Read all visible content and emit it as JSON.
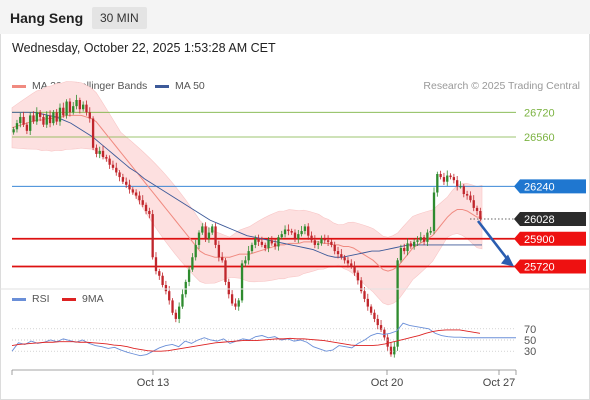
{
  "header": {
    "title": "Hang Seng",
    "interval": "30 MIN"
  },
  "datetime": "Wednesday, October 22, 2025 1:53:28 AM CET",
  "legend": {
    "ma20_label": "MA 20 + Bollinger Bands",
    "ma50_label": "MA 50",
    "copyright": "Research © 2025 Trading Central",
    "rsi_label": "RSI",
    "ma9_label": "9MA"
  },
  "colors": {
    "ma20": "#f08a80",
    "ma50": "#3d5a99",
    "bollinger_fill": "#fde0e0",
    "candle_up": "#2e8b2e",
    "candle_down": "#c0262c",
    "resistance": "#7cb342",
    "pivot": "#1f77d0",
    "support": "#dd1111",
    "rsi": "#6a8fd8",
    "rsi_ma": "#dd2222",
    "arrow": "#2a5db0"
  },
  "chart_data": [
    {
      "type": "candlestick",
      "title": "Hang Seng",
      "x_ticks": [
        "Oct 13",
        "Oct 20",
        "Oct 27"
      ],
      "ylim": [
        25600,
        26800
      ],
      "levels": [
        {
          "value": 26720,
          "label": "26720",
          "role": "resistance"
        },
        {
          "value": 26560,
          "label": "26560",
          "role": "resistance"
        },
        {
          "value": 26240,
          "label": "26240",
          "role": "pivot"
        },
        {
          "value": 26028,
          "label": "26028",
          "role": "last-price"
        },
        {
          "value": 25900,
          "label": "25900",
          "role": "support"
        },
        {
          "value": 25720,
          "label": "25720",
          "role": "support"
        }
      ],
      "close": [
        26610,
        26650,
        26690,
        26640,
        26600,
        26700,
        26660,
        26720,
        26690,
        26640,
        26700,
        26650,
        26720,
        26660,
        26750,
        26700,
        26790,
        26720,
        26760,
        26800,
        26740,
        26770,
        26720,
        26680,
        26490,
        26450,
        26470,
        26430,
        26420,
        26380,
        26360,
        26330,
        26300,
        26270,
        26250,
        26220,
        26200,
        26180,
        26150,
        26120,
        26080,
        26060,
        25780,
        25690,
        25660,
        25600,
        25560,
        25500,
        25420,
        25380,
        25460,
        25540,
        25620,
        25700,
        25780,
        25860,
        25940,
        25980,
        25900,
        25940,
        25980,
        25860,
        25780,
        25760,
        25620,
        25540,
        25480,
        25460,
        25500,
        25740,
        25760,
        25820,
        25860,
        25900,
        25880,
        25860,
        25840,
        25890,
        25870,
        25850,
        25910,
        25930,
        25960,
        25950,
        25940,
        25900,
        25930,
        25950,
        25980,
        25920,
        25890,
        25860,
        25870,
        25900,
        25890,
        25880,
        25860,
        25820,
        25800,
        25780,
        25760,
        25740,
        25720,
        25680,
        25630,
        25560,
        25510,
        25460,
        25420,
        25380,
        25340,
        25310,
        25260,
        25200,
        25150,
        25200,
        25760,
        25840,
        25820,
        25870,
        25850,
        25880,
        25890,
        25910,
        25880,
        25940,
        25950,
        26200,
        26320,
        26300,
        26270,
        26310,
        26300,
        26280,
        26240,
        26240,
        26190,
        26180,
        26150,
        26100,
        26080,
        26028
      ],
      "ma20": [
        26620,
        26630,
        26640,
        26650,
        26660,
        26670,
        26670,
        26680,
        26680,
        26690,
        26690,
        26700,
        26700,
        26700,
        26700,
        26690,
        26680,
        26660,
        26620,
        26580,
        26540,
        26500,
        26460,
        26420,
        26380,
        26340,
        26300,
        26260,
        26220,
        26180,
        26140,
        26100,
        26060,
        26020,
        25980,
        25940,
        25900,
        25860,
        25820,
        25800,
        25790,
        25780,
        25780,
        25780,
        25780,
        25790,
        25800,
        25800,
        25800,
        25810,
        25820,
        25830,
        25840,
        25850,
        25860,
        25860,
        25870,
        25870,
        25870,
        25880,
        25880,
        25880,
        25880,
        25870,
        25870,
        25860,
        25860,
        25850,
        25850,
        25840,
        25820,
        25800,
        25780,
        25760,
        25730,
        25700,
        25690,
        25700,
        25720,
        25760,
        25800,
        25840,
        25860,
        25880,
        25900,
        25920,
        25960,
        26000,
        26040,
        26070,
        26090,
        26090,
        26080,
        26060,
        26040,
        26040
      ],
      "ma50": [
        26720,
        26720,
        26720,
        26720,
        26710,
        26700,
        26690,
        26670,
        26650,
        26620,
        26590,
        26560,
        26520,
        26480,
        26440,
        26400,
        26360,
        26330,
        26290,
        26260,
        26230,
        26200,
        26170,
        26140,
        26110,
        26080,
        26050,
        26020,
        26000,
        25980,
        25960,
        25940,
        25920,
        25910,
        25900,
        25890,
        25880,
        25870,
        25860,
        25850,
        25840,
        25830,
        25810,
        25790,
        25780,
        25780,
        25790,
        25800,
        25810,
        25820,
        25820,
        25830,
        25840,
        25850,
        25860,
        25860,
        25860,
        25860,
        25860,
        25860,
        25860,
        25860,
        25860,
        25860,
        25860
      ]
    },
    {
      "type": "line",
      "title": "RSI",
      "ylim": [
        0,
        100
      ],
      "y_ticks": [
        70,
        50,
        30
      ],
      "series": [
        {
          "name": "RSI",
          "values": [
            30,
            45,
            42,
            48,
            44,
            46,
            50,
            47,
            52,
            49,
            46,
            50,
            44,
            40,
            38,
            35,
            37,
            32,
            28,
            25,
            22,
            24,
            30,
            36,
            40,
            42,
            38,
            48,
            44,
            50,
            54,
            50,
            48,
            52,
            44,
            48,
            52,
            50,
            56,
            58,
            54,
            56,
            50,
            52,
            48,
            50,
            46,
            38,
            34,
            30,
            32,
            40,
            38,
            36,
            44,
            50,
            58,
            62,
            60,
            62,
            66,
            80,
            76,
            74,
            72,
            70,
            62,
            58,
            56,
            55,
            55,
            54,
            54,
            54
          ]
        },
        {
          "name": "9MA",
          "values": [
            40,
            42,
            43,
            44,
            45,
            46,
            46,
            47,
            47,
            47,
            46,
            46,
            45,
            44,
            43,
            41,
            40,
            38,
            35,
            33,
            31,
            30,
            30,
            31,
            33,
            35,
            37,
            39,
            41,
            43,
            45,
            46,
            47,
            48,
            49,
            49,
            49,
            50,
            51,
            52,
            52,
            53,
            52,
            52,
            51,
            50,
            49,
            47,
            45,
            43,
            41,
            40,
            40,
            40,
            41,
            43,
            46,
            49,
            52,
            55,
            58,
            62,
            65,
            67,
            68,
            68,
            68,
            66,
            64,
            62
          ]
        }
      ]
    }
  ]
}
